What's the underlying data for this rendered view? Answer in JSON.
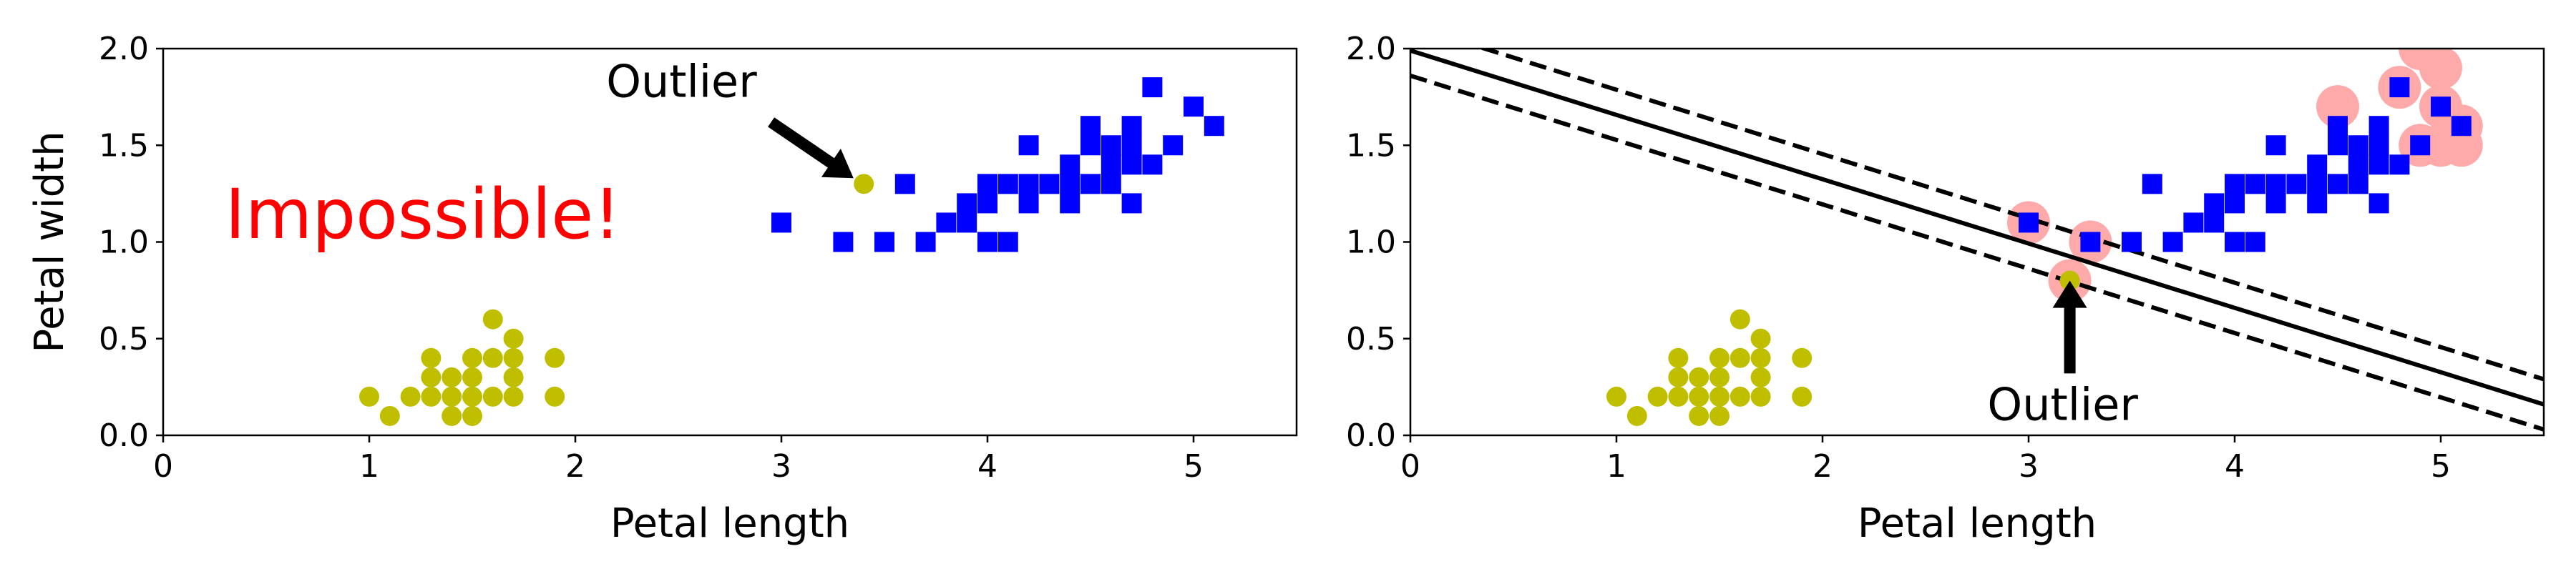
{
  "colors": {
    "class_a": "#bfbf00",
    "class_b": "#0000ff",
    "support_vectors": "#ffaaaa",
    "impossible_text": "#ff0000",
    "line": "#000000"
  },
  "chart_data": [
    {
      "type": "scatter",
      "xlabel": "Petal length",
      "ylabel": "Petal width",
      "xlim": [
        0,
        5.5
      ],
      "ylim": [
        0,
        2.0
      ],
      "xticks": [
        "0",
        "1",
        "2",
        "3",
        "4",
        "5"
      ],
      "yticks": [
        "0.0",
        "0.5",
        "1.0",
        "1.5",
        "2.0"
      ],
      "series": [
        {
          "marker": "circle",
          "color": "#bfbf00",
          "points": [
            [
              1.0,
              0.2
            ],
            [
              1.1,
              0.1
            ],
            [
              1.2,
              0.2
            ],
            [
              1.3,
              0.2
            ],
            [
              1.3,
              0.3
            ],
            [
              1.3,
              0.4
            ],
            [
              1.4,
              0.1
            ],
            [
              1.4,
              0.2
            ],
            [
              1.4,
              0.3
            ],
            [
              1.5,
              0.1
            ],
            [
              1.5,
              0.2
            ],
            [
              1.5,
              0.3
            ],
            [
              1.5,
              0.4
            ],
            [
              1.6,
              0.2
            ],
            [
              1.6,
              0.4
            ],
            [
              1.6,
              0.6
            ],
            [
              1.7,
              0.2
            ],
            [
              1.7,
              0.3
            ],
            [
              1.7,
              0.4
            ],
            [
              1.7,
              0.5
            ],
            [
              1.9,
              0.2
            ],
            [
              1.9,
              0.4
            ],
            [
              3.4,
              1.3
            ]
          ]
        },
        {
          "marker": "square",
          "color": "#0000ff",
          "points": [
            [
              3.0,
              1.1
            ],
            [
              3.3,
              1.0
            ],
            [
              3.5,
              1.0
            ],
            [
              3.6,
              1.3
            ],
            [
              3.7,
              1.0
            ],
            [
              3.8,
              1.1
            ],
            [
              3.9,
              1.1
            ],
            [
              3.9,
              1.2
            ],
            [
              4.0,
              1.0
            ],
            [
              4.0,
              1.2
            ],
            [
              4.0,
              1.3
            ],
            [
              4.1,
              1.0
            ],
            [
              4.1,
              1.3
            ],
            [
              4.2,
              1.2
            ],
            [
              4.2,
              1.3
            ],
            [
              4.2,
              1.5
            ],
            [
              4.3,
              1.3
            ],
            [
              4.4,
              1.2
            ],
            [
              4.4,
              1.3
            ],
            [
              4.4,
              1.4
            ],
            [
              4.5,
              1.3
            ],
            [
              4.5,
              1.5
            ],
            [
              4.5,
              1.6
            ],
            [
              4.6,
              1.3
            ],
            [
              4.6,
              1.4
            ],
            [
              4.6,
              1.5
            ],
            [
              4.7,
              1.2
            ],
            [
              4.7,
              1.4
            ],
            [
              4.7,
              1.5
            ],
            [
              4.7,
              1.6
            ],
            [
              4.8,
              1.4
            ],
            [
              4.8,
              1.8
            ],
            [
              4.9,
              1.5
            ],
            [
              5.0,
              1.7
            ],
            [
              5.1,
              1.6
            ]
          ]
        }
      ],
      "annotations": [
        {
          "text": "Outlier",
          "x": 2.15,
          "y": 1.75,
          "arrow_to": [
            3.35,
            1.33
          ]
        },
        {
          "text": "Impossible!",
          "x": 0.3,
          "y": 1.02,
          "color": "#ff0000"
        }
      ]
    },
    {
      "type": "scatter",
      "xlabel": "Petal length",
      "ylabel": "",
      "xlim": [
        0,
        5.5
      ],
      "ylim": [
        0,
        2.0
      ],
      "xticks": [
        "0",
        "1",
        "2",
        "3",
        "4",
        "5"
      ],
      "yticks": [
        "0.0",
        "0.5",
        "1.0",
        "1.5",
        "2.0"
      ],
      "series": [
        {
          "marker": "circle",
          "color": "#bfbf00",
          "points": [
            [
              1.0,
              0.2
            ],
            [
              1.1,
              0.1
            ],
            [
              1.2,
              0.2
            ],
            [
              1.3,
              0.2
            ],
            [
              1.3,
              0.3
            ],
            [
              1.3,
              0.4
            ],
            [
              1.4,
              0.1
            ],
            [
              1.4,
              0.2
            ],
            [
              1.4,
              0.3
            ],
            [
              1.5,
              0.1
            ],
            [
              1.5,
              0.2
            ],
            [
              1.5,
              0.3
            ],
            [
              1.5,
              0.4
            ],
            [
              1.6,
              0.2
            ],
            [
              1.6,
              0.4
            ],
            [
              1.6,
              0.6
            ],
            [
              1.7,
              0.2
            ],
            [
              1.7,
              0.3
            ],
            [
              1.7,
              0.4
            ],
            [
              1.7,
              0.5
            ],
            [
              1.9,
              0.2
            ],
            [
              1.9,
              0.4
            ],
            [
              3.2,
              0.8
            ]
          ]
        },
        {
          "marker": "square",
          "color": "#0000ff",
          "points": [
            [
              3.0,
              1.1
            ],
            [
              3.3,
              1.0
            ],
            [
              3.5,
              1.0
            ],
            [
              3.6,
              1.3
            ],
            [
              3.7,
              1.0
            ],
            [
              3.8,
              1.1
            ],
            [
              3.9,
              1.1
            ],
            [
              3.9,
              1.2
            ],
            [
              4.0,
              1.0
            ],
            [
              4.0,
              1.2
            ],
            [
              4.0,
              1.3
            ],
            [
              4.1,
              1.0
            ],
            [
              4.1,
              1.3
            ],
            [
              4.2,
              1.2
            ],
            [
              4.2,
              1.3
            ],
            [
              4.2,
              1.5
            ],
            [
              4.3,
              1.3
            ],
            [
              4.4,
              1.2
            ],
            [
              4.4,
              1.3
            ],
            [
              4.4,
              1.4
            ],
            [
              4.5,
              1.3
            ],
            [
              4.5,
              1.5
            ],
            [
              4.5,
              1.6
            ],
            [
              4.6,
              1.3
            ],
            [
              4.6,
              1.4
            ],
            [
              4.6,
              1.5
            ],
            [
              4.7,
              1.2
            ],
            [
              4.7,
              1.4
            ],
            [
              4.7,
              1.5
            ],
            [
              4.7,
              1.6
            ],
            [
              4.8,
              1.4
            ],
            [
              4.8,
              1.8
            ],
            [
              4.9,
              1.5
            ],
            [
              5.0,
              1.7
            ],
            [
              5.1,
              1.6
            ]
          ]
        }
      ],
      "support_vectors": [
        [
          3.0,
          1.1
        ],
        [
          3.3,
          1.0
        ],
        [
          3.2,
          0.8
        ],
        [
          4.5,
          1.7
        ],
        [
          4.8,
          1.8
        ],
        [
          4.9,
          2.0
        ],
        [
          5.0,
          1.9
        ],
        [
          5.0,
          1.7
        ],
        [
          4.9,
          1.5
        ],
        [
          5.0,
          1.5
        ],
        [
          5.1,
          1.5
        ],
        [
          5.1,
          1.6
        ]
      ],
      "lines": [
        {
          "style": "solid",
          "points": [
            [
              0,
              1.99
            ],
            [
              5.5,
              0.16
            ]
          ]
        },
        {
          "style": "dashed",
          "points": [
            [
              0,
              2.12
            ],
            [
              5.5,
              0.29
            ]
          ]
        },
        {
          "style": "dashed",
          "points": [
            [
              0,
              1.86
            ],
            [
              5.5,
              0.03
            ]
          ]
        }
      ],
      "annotations": [
        {
          "text": "Outlier",
          "x": 2.8,
          "y": 0.08,
          "arrow_to": [
            3.2,
            0.8
          ]
        }
      ]
    }
  ]
}
